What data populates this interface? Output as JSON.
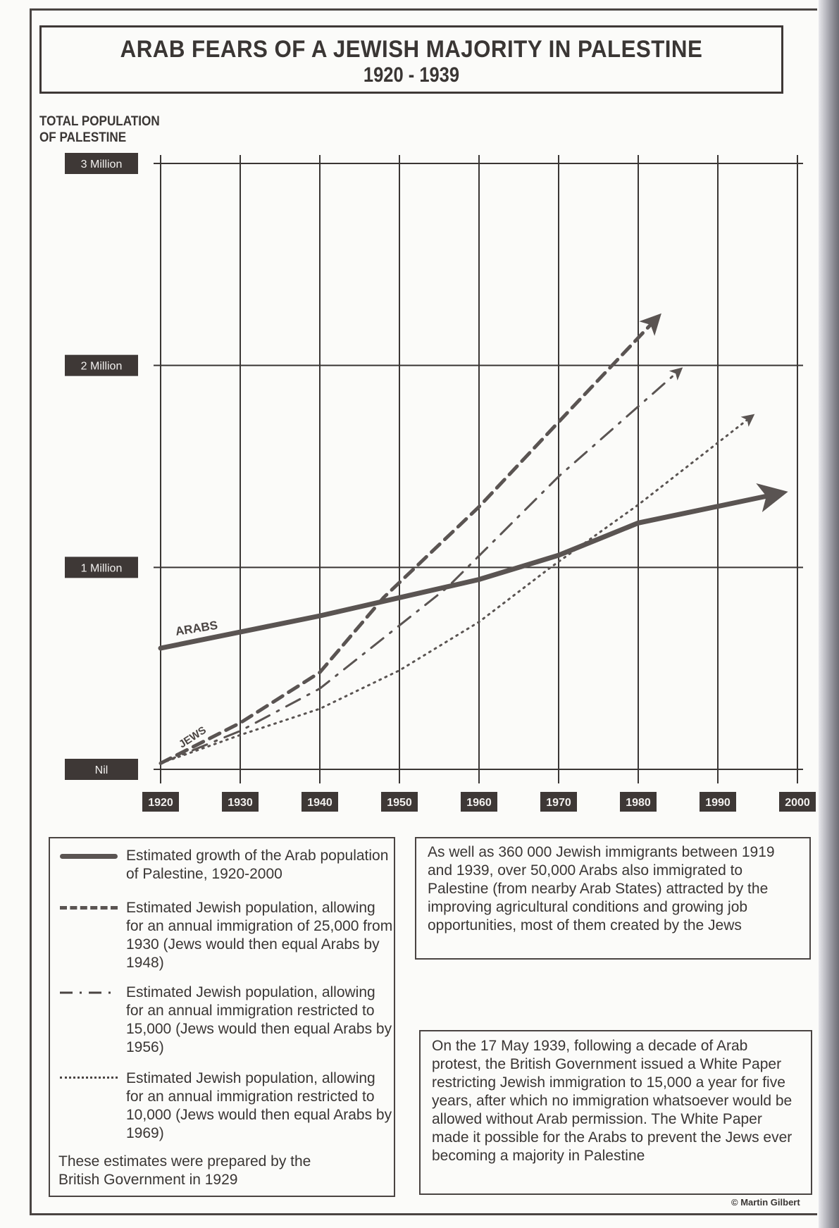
{
  "title": "ARAB FEARS OF A JEWISH MAJORITY IN PALESTINE",
  "subtitle": "1920 - 1939",
  "chart_data": {
    "type": "line",
    "title": "ARAB FEARS OF A JEWISH MAJORITY IN PALESTINE 1920 - 1939",
    "ylabel": "TOTAL POPULATION OF PALESTINE",
    "ylabel_lines": [
      "TOTAL POPULATION",
      "OF PALESTINE"
    ],
    "xlabel": "",
    "xlim": [
      1920,
      2000
    ],
    "ylim": [
      0,
      3000000
    ],
    "grid": true,
    "x_ticks": [
      "1920",
      "1930",
      "1940",
      "1950",
      "1960",
      "1970",
      "1980",
      "1990",
      "2000"
    ],
    "y_ticks": [
      {
        "value": 0,
        "label": "Nil"
      },
      {
        "value": 1000000,
        "label": "1 Million"
      },
      {
        "value": 2000000,
        "label": "2 Million"
      },
      {
        "value": 3000000,
        "label": "3 Million"
      }
    ],
    "series": [
      {
        "name": "Arabs",
        "label": "ARABS",
        "style": "solid",
        "x": [
          1920,
          1930,
          1940,
          1950,
          1960,
          1970,
          1980,
          1997
        ],
        "y": [
          600000,
          680000,
          760000,
          850000,
          940000,
          1060000,
          1220000,
          1360000
        ]
      },
      {
        "name": "Jews (25,000 annual immigration)",
        "label": "JEWS",
        "style": "dashed",
        "x": [
          1920,
          1930,
          1940,
          1948,
          1960,
          1970,
          1982
        ],
        "y": [
          30000,
          230000,
          480000,
          850000,
          1300000,
          1720000,
          2220000
        ]
      },
      {
        "name": "Jews (15,000 annual immigration)",
        "style": "dashdot",
        "x": [
          1920,
          1930,
          1940,
          1956,
          1970,
          1985
        ],
        "y": [
          30000,
          190000,
          400000,
          900000,
          1450000,
          1970000
        ]
      },
      {
        "name": "Jews (10,000 annual immigration)",
        "style": "dotted",
        "x": [
          1920,
          1930,
          1940,
          1950,
          1960,
          1969,
          1980,
          1994
        ],
        "y": [
          30000,
          170000,
          300000,
          490000,
          730000,
          1000000,
          1310000,
          1740000
        ]
      }
    ],
    "annotations": [
      "ARABS",
      "JEWS"
    ]
  },
  "legend": {
    "items": [
      {
        "style": "solid",
        "text": "Estimated growth of the Arab population of Palestine, 1920-2000"
      },
      {
        "style": "dashed",
        "text": "Estimated Jewish population, allowing for an annual immigration of 25,000 from 1930 (Jews would then equal Arabs by 1948)"
      },
      {
        "style": "dashdot",
        "text": "Estimated Jewish population, allowing for an annual immigration restricted to 15,000  (Jews would then equal Arabs by 1956)"
      },
      {
        "style": "dotted",
        "text": "Estimated Jewish population, allowing for an annual immigration restricted to 10,000  (Jews would then equal Arabs by 1969)"
      }
    ],
    "footnote": "These estimates were prepared by the British Government in 1929"
  },
  "notes": {
    "immigration": "As well as 360 000 Jewish immigrants between 1919 and 1939, over 50,000 Arabs also immigrated to Palestine (from nearby Arab States) attracted by the improving agricultural conditions and growing job opportunities, most of them created by the Jews",
    "white_paper": "On the 17 May 1939, following a decade of Arab protest, the British Government issued a White Paper restricting Jewish immigration to 15,000 a year for five years, after which no immigration whatsoever would be allowed without Arab permission. The White Paper made it possible for the Arabs to prevent the Jews ever becoming a majority in Palestine"
  },
  "copyright": "© Martin Gilbert",
  "colors": {
    "ink": "#4a4442",
    "label_box": "#3e3836",
    "paper": "#fbfbf9"
  }
}
